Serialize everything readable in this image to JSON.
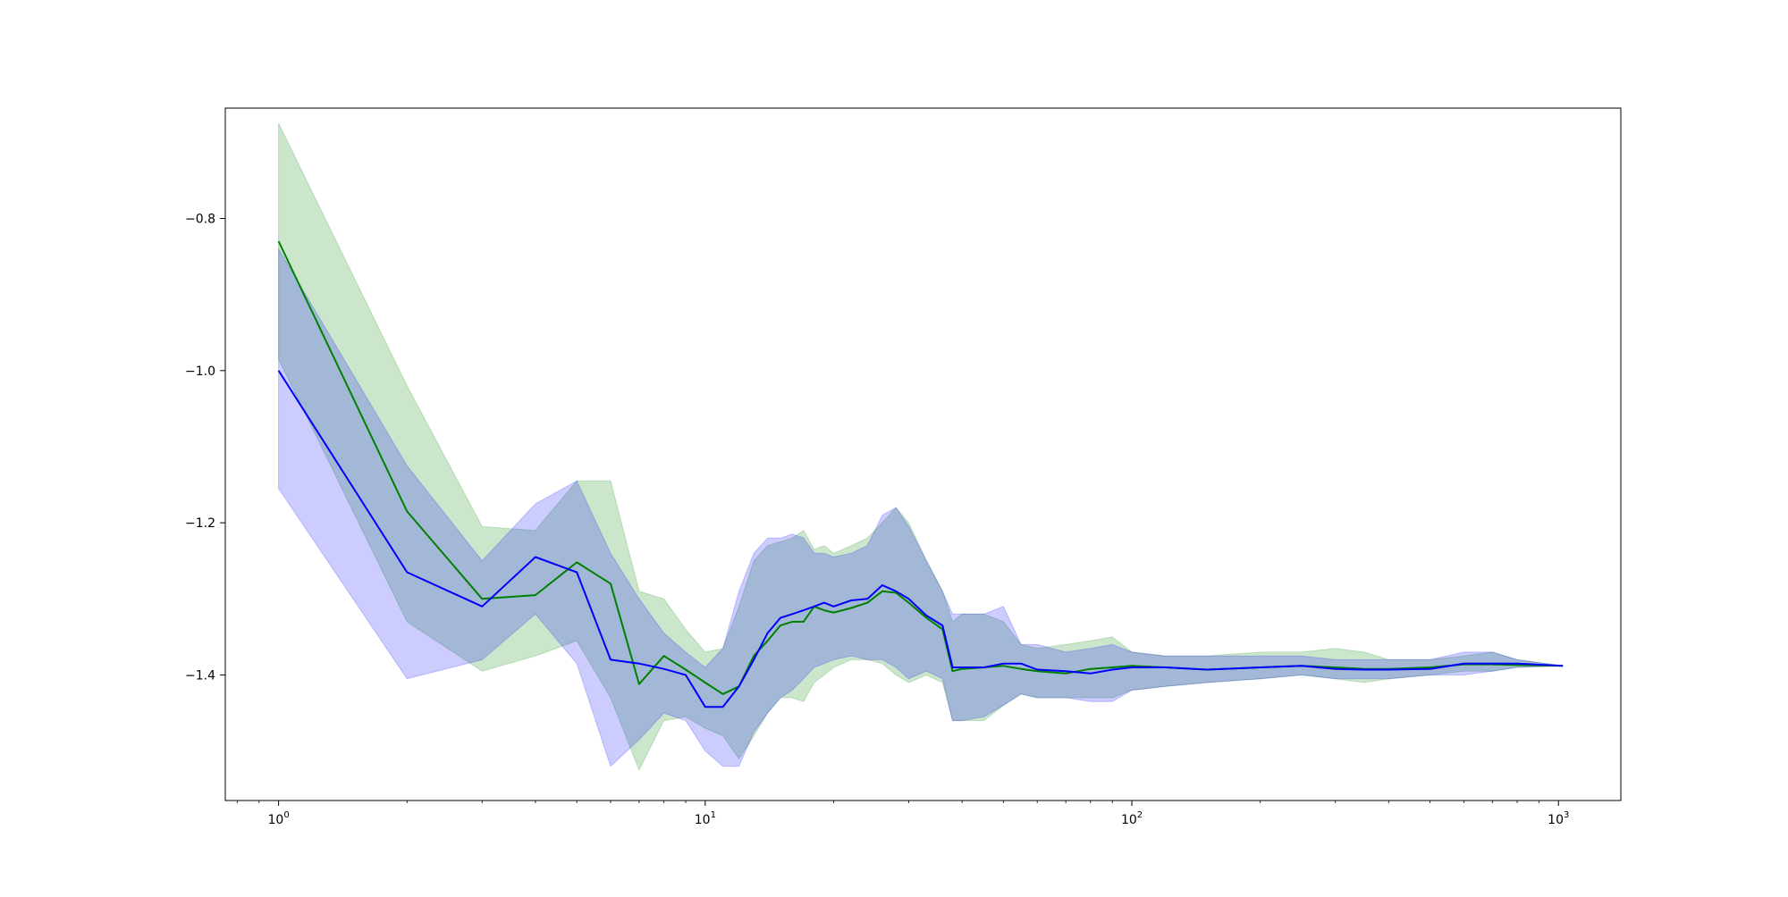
{
  "chart_data": {
    "type": "line",
    "title": "",
    "xlabel": "",
    "ylabel": "",
    "xscale": "log",
    "xlim": [
      0.75,
      1400
    ],
    "ylim": [
      -1.565,
      -0.655
    ],
    "grid": false,
    "legend": "none",
    "x_ticks": [
      {
        "value": 1,
        "base": "10",
        "exp": "0"
      },
      {
        "value": 10,
        "base": "10",
        "exp": "1"
      },
      {
        "value": 100,
        "base": "10",
        "exp": "2"
      },
      {
        "value": 1000,
        "base": "10",
        "exp": "3"
      }
    ],
    "y_ticks": [
      {
        "value": -0.8,
        "label": "−0.8"
      },
      {
        "value": -1.0,
        "label": "−1.0"
      },
      {
        "value": -1.2,
        "label": "−1.2"
      },
      {
        "value": -1.4,
        "label": "−1.4"
      }
    ],
    "series": [
      {
        "color": "#008000",
        "band_color": "#008000",
        "band_opacity": 0.2,
        "x": [
          1,
          2,
          3,
          4,
          5,
          6,
          7,
          8,
          9,
          10,
          11,
          12,
          13,
          14,
          15,
          16,
          17,
          18,
          19,
          20,
          22,
          24,
          26,
          28,
          30,
          33,
          36,
          38,
          40,
          45,
          50,
          55,
          60,
          70,
          80,
          90,
          100,
          120,
          150,
          200,
          250,
          300,
          350,
          400,
          500,
          600,
          700,
          800,
          1024
        ],
        "y": [
          -0.83,
          -1.185,
          -1.3,
          -1.295,
          -1.252,
          -1.28,
          -1.412,
          -1.375,
          -1.393,
          -1.41,
          -1.425,
          -1.415,
          -1.375,
          -1.355,
          -1.335,
          -1.33,
          -1.33,
          -1.31,
          -1.315,
          -1.318,
          -1.312,
          -1.305,
          -1.29,
          -1.292,
          -1.305,
          -1.325,
          -1.34,
          -1.395,
          -1.392,
          -1.39,
          -1.388,
          -1.392,
          -1.395,
          -1.398,
          -1.392,
          -1.39,
          -1.388,
          -1.39,
          -1.393,
          -1.39,
          -1.388,
          -1.39,
          -1.392,
          -1.392,
          -1.39,
          -1.386,
          -1.386,
          -1.387,
          -1.388
        ],
        "upper": [
          -0.675,
          -1.02,
          -1.205,
          -1.21,
          -1.145,
          -1.145,
          -1.29,
          -1.3,
          -1.34,
          -1.37,
          -1.365,
          -1.31,
          -1.25,
          -1.23,
          -1.225,
          -1.22,
          -1.21,
          -1.235,
          -1.23,
          -1.24,
          -1.23,
          -1.22,
          -1.2,
          -1.18,
          -1.2,
          -1.25,
          -1.29,
          -1.33,
          -1.32,
          -1.32,
          -1.33,
          -1.36,
          -1.365,
          -1.36,
          -1.355,
          -1.35,
          -1.37,
          -1.375,
          -1.375,
          -1.37,
          -1.37,
          -1.365,
          -1.37,
          -1.38,
          -1.38,
          -1.375,
          -1.37,
          -1.38,
          -1.388
        ],
        "lower": [
          -0.985,
          -1.33,
          -1.395,
          -1.375,
          -1.355,
          -1.43,
          -1.525,
          -1.46,
          -1.455,
          -1.47,
          -1.48,
          -1.51,
          -1.48,
          -1.45,
          -1.43,
          -1.43,
          -1.435,
          -1.41,
          -1.4,
          -1.39,
          -1.38,
          -1.38,
          -1.385,
          -1.4,
          -1.41,
          -1.4,
          -1.41,
          -1.46,
          -1.46,
          -1.46,
          -1.44,
          -1.425,
          -1.43,
          -1.43,
          -1.43,
          -1.43,
          -1.42,
          -1.415,
          -1.41,
          -1.405,
          -1.4,
          -1.405,
          -1.41,
          -1.405,
          -1.4,
          -1.395,
          -1.395,
          -1.39,
          -1.388
        ]
      },
      {
        "color": "#0000ff",
        "band_color": "#0000ff",
        "band_opacity": 0.2,
        "x": [
          1,
          2,
          3,
          4,
          5,
          6,
          7,
          8,
          9,
          10,
          11,
          12,
          13,
          14,
          15,
          16,
          17,
          18,
          19,
          20,
          22,
          24,
          26,
          28,
          30,
          33,
          36,
          38,
          40,
          45,
          50,
          55,
          60,
          70,
          80,
          90,
          100,
          120,
          150,
          200,
          250,
          300,
          350,
          400,
          500,
          600,
          700,
          800,
          1024
        ],
        "y": [
          -1.0,
          -1.265,
          -1.31,
          -1.245,
          -1.265,
          -1.38,
          -1.385,
          -1.392,
          -1.4,
          -1.442,
          -1.442,
          -1.415,
          -1.38,
          -1.345,
          -1.325,
          -1.32,
          -1.315,
          -1.31,
          -1.305,
          -1.31,
          -1.302,
          -1.3,
          -1.282,
          -1.29,
          -1.3,
          -1.322,
          -1.335,
          -1.39,
          -1.39,
          -1.39,
          -1.385,
          -1.385,
          -1.393,
          -1.395,
          -1.398,
          -1.393,
          -1.39,
          -1.39,
          -1.393,
          -1.39,
          -1.388,
          -1.392,
          -1.393,
          -1.393,
          -1.392,
          -1.385,
          -1.385,
          -1.385,
          -1.388
        ],
        "upper": [
          -0.84,
          -1.125,
          -1.25,
          -1.175,
          -1.145,
          -1.24,
          -1.3,
          -1.345,
          -1.37,
          -1.39,
          -1.365,
          -1.29,
          -1.24,
          -1.22,
          -1.22,
          -1.215,
          -1.22,
          -1.24,
          -1.24,
          -1.245,
          -1.24,
          -1.23,
          -1.19,
          -1.18,
          -1.205,
          -1.25,
          -1.29,
          -1.32,
          -1.32,
          -1.32,
          -1.31,
          -1.36,
          -1.36,
          -1.37,
          -1.365,
          -1.36,
          -1.37,
          -1.375,
          -1.375,
          -1.375,
          -1.375,
          -1.38,
          -1.38,
          -1.38,
          -1.38,
          -1.37,
          -1.37,
          -1.38,
          -1.388
        ],
        "lower": [
          -1.155,
          -1.405,
          -1.38,
          -1.32,
          -1.385,
          -1.52,
          -1.485,
          -1.45,
          -1.46,
          -1.5,
          -1.52,
          -1.52,
          -1.475,
          -1.45,
          -1.43,
          -1.42,
          -1.405,
          -1.39,
          -1.385,
          -1.38,
          -1.375,
          -1.38,
          -1.38,
          -1.39,
          -1.405,
          -1.395,
          -1.405,
          -1.46,
          -1.46,
          -1.455,
          -1.44,
          -1.425,
          -1.43,
          -1.43,
          -1.435,
          -1.435,
          -1.42,
          -1.415,
          -1.41,
          -1.405,
          -1.4,
          -1.405,
          -1.405,
          -1.405,
          -1.4,
          -1.4,
          -1.395,
          -1.39,
          -1.388
        ]
      }
    ]
  }
}
